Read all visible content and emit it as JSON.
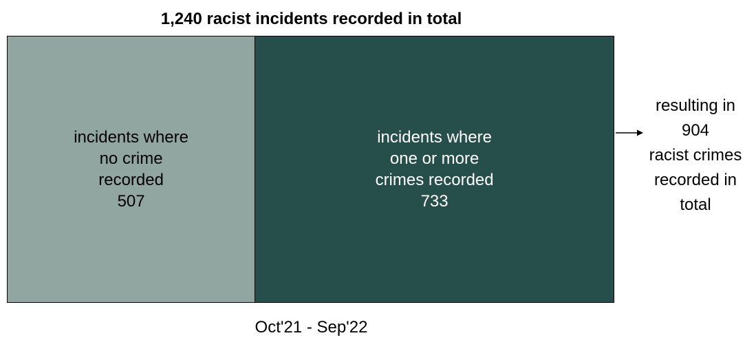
{
  "title": "1,240 racist incidents recorded in total",
  "colors": {
    "no_crime_fill": "#91a6a1",
    "crime_fill": "#264e4a",
    "border": "#000000"
  },
  "chart_data": {
    "type": "bar",
    "title": "1,240 racist incidents recorded in total",
    "total": 1240,
    "segments": [
      {
        "label_lines": [
          "incidents where",
          "no crime",
          "recorded"
        ],
        "value": 507,
        "value_text": "507"
      },
      {
        "label_lines": [
          "incidents where",
          "one or more",
          "crimes recorded"
        ],
        "value": 733,
        "value_text": "733"
      }
    ]
  },
  "outcome": {
    "lines": [
      "resulting in",
      "904",
      "racist crimes",
      "recorded in",
      "total"
    ],
    "value": 904
  },
  "period": "Oct'21 - Sep'22"
}
